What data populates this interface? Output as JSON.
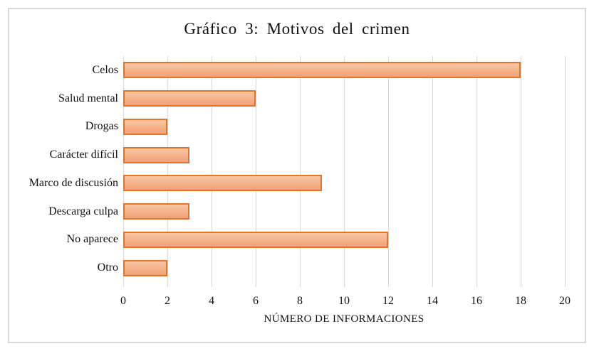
{
  "chart_data": {
    "type": "bar",
    "orientation": "horizontal",
    "title": "Gráfico 3: Motivos del crimen",
    "categories": [
      "Celos",
      "Salud mental",
      "Drogas",
      "Carácter difícil",
      "Marco de discusión",
      "Descarga culpa",
      "No aparece",
      "Otro"
    ],
    "values": [
      18,
      6,
      2,
      3,
      9,
      3,
      12,
      2
    ],
    "xlabel": "NÚMERO DE INFORMACIONES",
    "ylabel": "",
    "xlim": [
      0,
      20
    ],
    "xticks": [
      0,
      2,
      4,
      6,
      8,
      10,
      12,
      14,
      16,
      18,
      20
    ],
    "grid": true,
    "legend_position": "none",
    "colors": {
      "bar_fill_light": "#f9c6a5",
      "bar_fill_dark": "#f2a276",
      "bar_border": "#e6732a",
      "gridline": "#d9d9d9",
      "figure_border": "#d9d9d9",
      "text": "#111111"
    }
  }
}
